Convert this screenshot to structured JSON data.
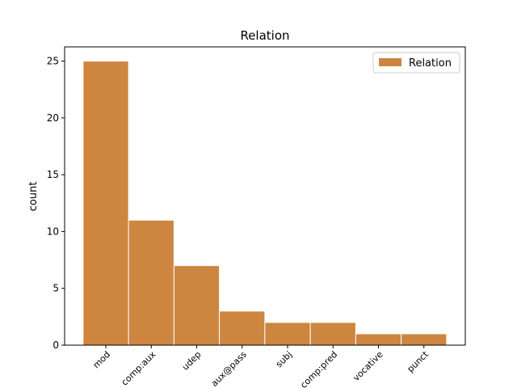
{
  "chart_data": {
    "type": "bar",
    "title": "Relation",
    "y_label": "count",
    "categories": [
      "mod",
      "comp:aux",
      "udep",
      "aux@pass",
      "subj",
      "comp:pred",
      "vocative",
      "punct"
    ],
    "series": [
      {
        "name": "Relation",
        "color": "#cd853f",
        "values": [
          25,
          11,
          7,
          3,
          2,
          2,
          1,
          1
        ]
      }
    ],
    "ylim": [
      0,
      26.25
    ],
    "yticks": [
      0,
      5,
      10,
      15,
      20,
      25
    ],
    "legend": "upper right"
  }
}
